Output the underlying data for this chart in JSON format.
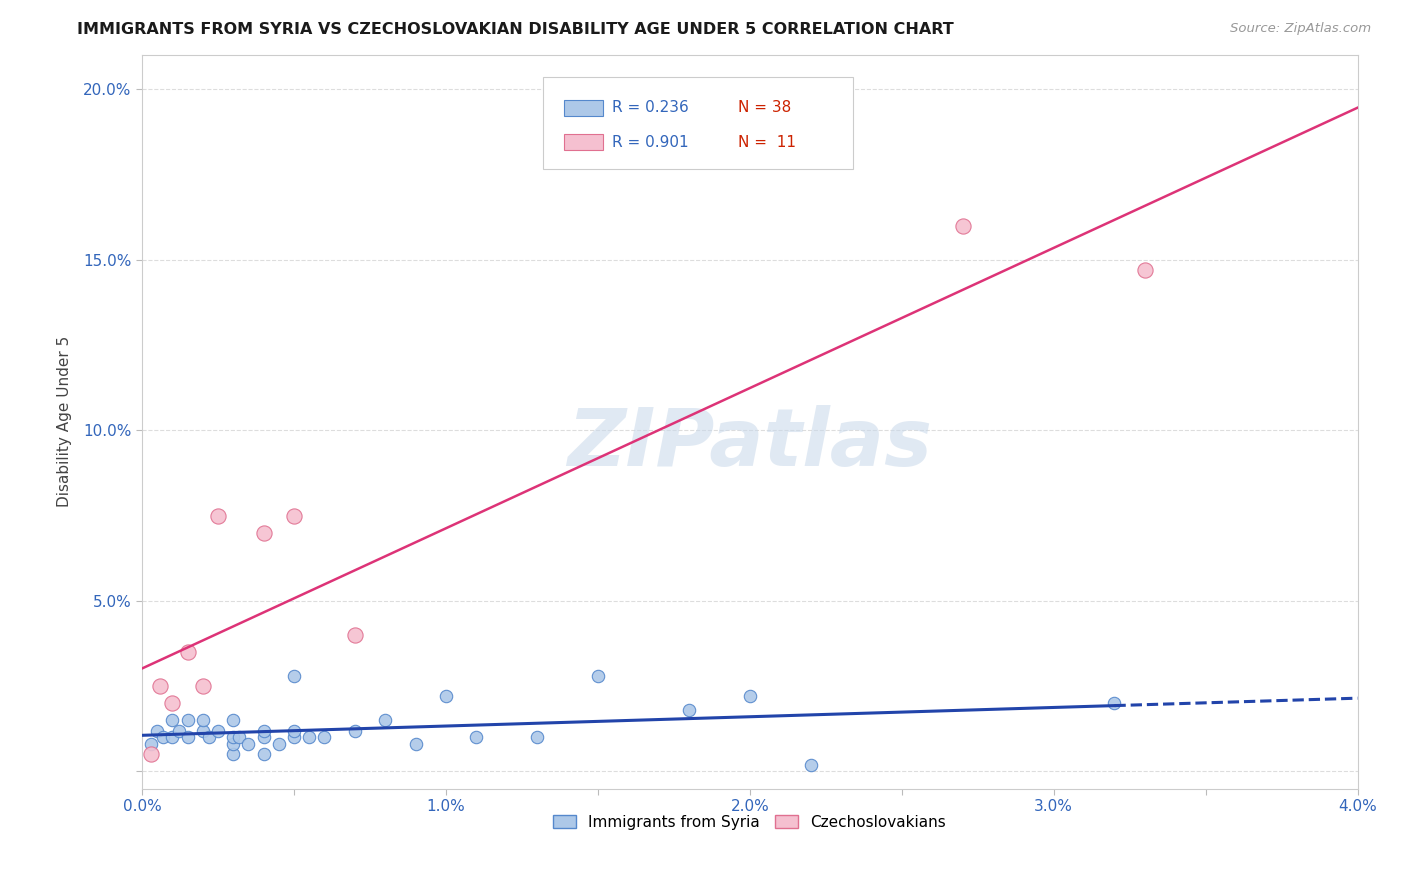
{
  "title": "IMMIGRANTS FROM SYRIA VS CZECHOSLOVAKIAN DISABILITY AGE UNDER 5 CORRELATION CHART",
  "source": "Source: ZipAtlas.com",
  "ylabel": "Disability Age Under 5",
  "xmin": 0.0,
  "xmax": 0.04,
  "ymin": -0.005,
  "ymax": 0.21,
  "yticks": [
    0.0,
    0.05,
    0.1,
    0.15,
    0.2
  ],
  "ytick_labels": [
    "",
    "5.0%",
    "10.0%",
    "15.0%",
    "20.0%"
  ],
  "xticks": [
    0.0,
    0.005,
    0.01,
    0.015,
    0.02,
    0.025,
    0.03,
    0.035,
    0.04
  ],
  "xtick_labels": [
    "0.0%",
    "",
    "1.0%",
    "",
    "2.0%",
    "",
    "3.0%",
    "",
    "4.0%"
  ],
  "syria_color": "#adc8e8",
  "syria_edge_color": "#5588cc",
  "czech_color": "#f5c0d0",
  "czech_edge_color": "#e07090",
  "trendline_syria_color": "#2244aa",
  "trendline_czech_color": "#dd3377",
  "legend_R_syria": "0.236",
  "legend_N_syria": "38",
  "legend_R_czech": "0.901",
  "legend_N_czech": "11",
  "watermark": "ZIPatlas",
  "syria_x": [
    0.0003,
    0.0005,
    0.0007,
    0.001,
    0.001,
    0.0012,
    0.0015,
    0.0015,
    0.002,
    0.002,
    0.0022,
    0.0025,
    0.003,
    0.003,
    0.003,
    0.003,
    0.0032,
    0.0035,
    0.004,
    0.004,
    0.004,
    0.0045,
    0.005,
    0.005,
    0.005,
    0.0055,
    0.006,
    0.007,
    0.008,
    0.009,
    0.01,
    0.011,
    0.013,
    0.015,
    0.018,
    0.02,
    0.022,
    0.032
  ],
  "syria_y": [
    0.008,
    0.012,
    0.01,
    0.01,
    0.015,
    0.012,
    0.015,
    0.01,
    0.012,
    0.015,
    0.01,
    0.012,
    0.005,
    0.008,
    0.01,
    0.015,
    0.01,
    0.008,
    0.005,
    0.01,
    0.012,
    0.008,
    0.01,
    0.012,
    0.028,
    0.01,
    0.01,
    0.012,
    0.015,
    0.008,
    0.022,
    0.01,
    0.01,
    0.028,
    0.018,
    0.022,
    0.002,
    0.02
  ],
  "czech_x": [
    0.0003,
    0.0006,
    0.001,
    0.0015,
    0.002,
    0.0025,
    0.004,
    0.005,
    0.007,
    0.027,
    0.033
  ],
  "czech_y": [
    0.005,
    0.025,
    0.02,
    0.035,
    0.025,
    0.075,
    0.07,
    0.075,
    0.04,
    0.16,
    0.147
  ]
}
